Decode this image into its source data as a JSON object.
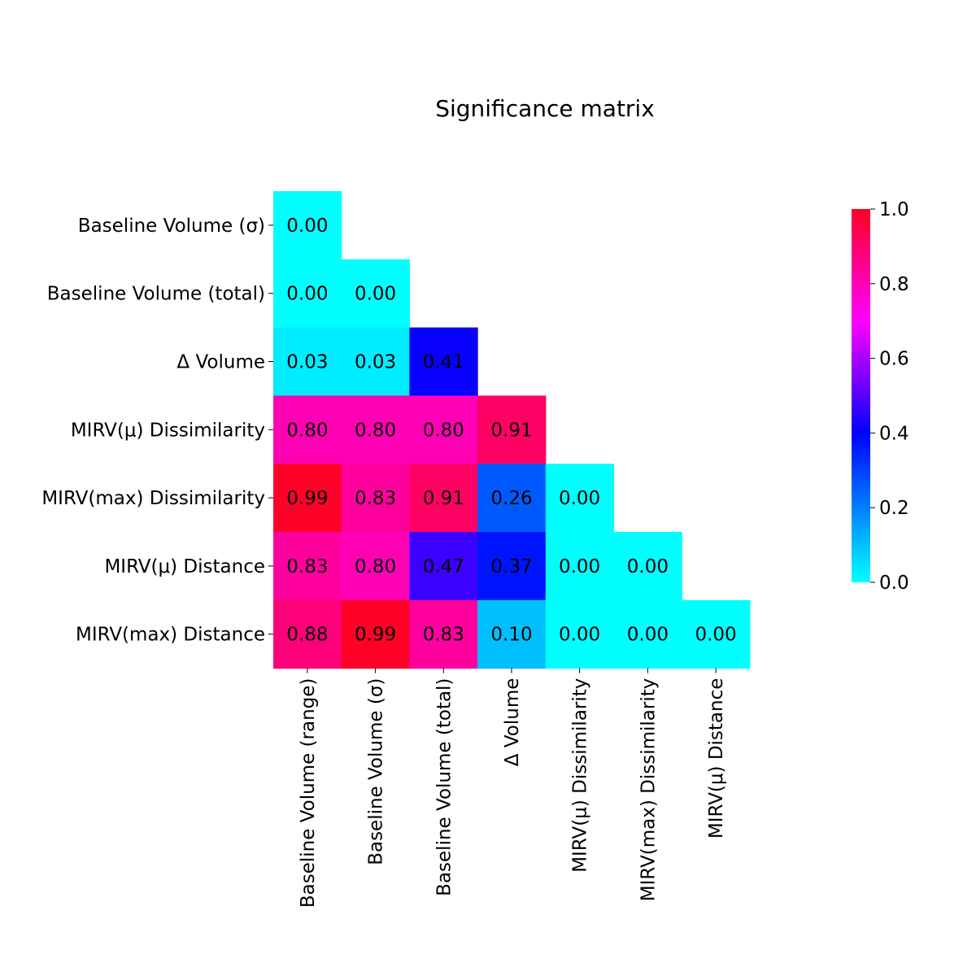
{
  "chart_data": {
    "type": "heatmap",
    "title": "Significance matrix",
    "rows": [
      "Baseline Volume (σ)",
      "Baseline Volume (total)",
      "Δ Volume",
      "MIRV(μ) Dissimilarity",
      "MIRV(max) Dissimilarity",
      "MIRV(μ) Distance",
      "MIRV(max) Distance"
    ],
    "columns": [
      "Baseline Volume (range)",
      "Baseline Volume (σ)",
      "Baseline Volume (total)",
      "Δ Volume",
      "MIRV(μ) Dissimilarity",
      "MIRV(max) Dissimilarity",
      "MIRV(μ) Distance"
    ],
    "values": [
      [
        0.0
      ],
      [
        0.0,
        0.0
      ],
      [
        0.03,
        0.03,
        0.41
      ],
      [
        0.8,
        0.8,
        0.8,
        0.91
      ],
      [
        0.99,
        0.83,
        0.91,
        0.26,
        0.0
      ],
      [
        0.83,
        0.8,
        0.47,
        0.37,
        0.0,
        0.0
      ],
      [
        0.88,
        0.99,
        0.83,
        0.1,
        0.0,
        0.0,
        0.0
      ]
    ],
    "value_format": "0.00",
    "colormap": "cool-to-hot (cyan → blue → magenta → red)",
    "colormap_stops": [
      "#00ffff",
      "#0000ff",
      "#ff00ff",
      "#ff0022"
    ],
    "colorbar": {
      "min": 0.0,
      "max": 1.0,
      "ticks": [
        "0.0",
        "0.2",
        "0.4",
        "0.6",
        "0.8",
        "1.0"
      ],
      "placement": "right"
    },
    "grid": false,
    "legend": "none"
  }
}
